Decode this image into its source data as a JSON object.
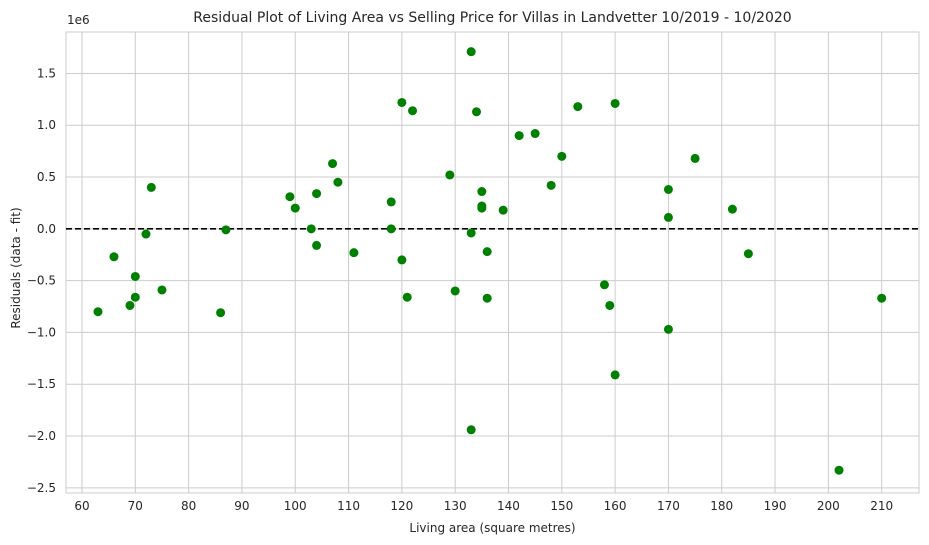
{
  "chart_data": {
    "type": "scatter",
    "title": "Residual Plot of Living Area vs Selling Price for Villas in Landvetter 10/2019 - 10/2020",
    "xlabel": "Living area (square metres)",
    "ylabel": "Residuals (data - fit)",
    "y_offset_label": "1e6",
    "xlim": [
      57,
      217
    ],
    "ylim": [
      -2.55,
      1.9
    ],
    "x_ticks": [
      60,
      70,
      80,
      90,
      100,
      110,
      120,
      130,
      140,
      150,
      160,
      170,
      180,
      190,
      200,
      210
    ],
    "y_ticks": [
      -2.5,
      -2.0,
      -1.5,
      -1.0,
      -0.5,
      0.0,
      0.5,
      1.0,
      1.5
    ],
    "y_tick_labels": [
      "−2.5",
      "−2.0",
      "−1.5",
      "−1.0",
      "−0.5",
      "0.0",
      "0.5",
      "1.0",
      "1.5"
    ],
    "grid": true,
    "point_color": "#008000",
    "reference_line": {
      "y": 0,
      "style": "dashed",
      "color": "#000000"
    },
    "points": [
      {
        "x": 63,
        "y": -0.8
      },
      {
        "x": 66,
        "y": -0.27
      },
      {
        "x": 69,
        "y": -0.74
      },
      {
        "x": 70,
        "y": -0.46
      },
      {
        "x": 70,
        "y": -0.66
      },
      {
        "x": 72,
        "y": -0.05
      },
      {
        "x": 73,
        "y": 0.4
      },
      {
        "x": 75,
        "y": -0.59
      },
      {
        "x": 86,
        "y": -0.81
      },
      {
        "x": 87,
        "y": -0.01
      },
      {
        "x": 99,
        "y": 0.31
      },
      {
        "x": 100,
        "y": 0.2
      },
      {
        "x": 103,
        "y": 0.0
      },
      {
        "x": 104,
        "y": 0.34
      },
      {
        "x": 104,
        "y": -0.16
      },
      {
        "x": 107,
        "y": 0.63
      },
      {
        "x": 108,
        "y": 0.45
      },
      {
        "x": 111,
        "y": -0.23
      },
      {
        "x": 118,
        "y": 0.26
      },
      {
        "x": 118,
        "y": 0.0
      },
      {
        "x": 120,
        "y": 1.22
      },
      {
        "x": 120,
        "y": -0.3
      },
      {
        "x": 121,
        "y": -0.66
      },
      {
        "x": 122,
        "y": 1.14
      },
      {
        "x": 129,
        "y": 0.52
      },
      {
        "x": 130,
        "y": -0.6
      },
      {
        "x": 133,
        "y": 1.71
      },
      {
        "x": 133,
        "y": -0.04
      },
      {
        "x": 133,
        "y": -1.94
      },
      {
        "x": 134,
        "y": 1.13
      },
      {
        "x": 135,
        "y": 0.36
      },
      {
        "x": 135,
        "y": 0.22
      },
      {
        "x": 135,
        "y": 0.2
      },
      {
        "x": 136,
        "y": -0.22
      },
      {
        "x": 136,
        "y": -0.67
      },
      {
        "x": 139,
        "y": 0.18
      },
      {
        "x": 142,
        "y": 0.9
      },
      {
        "x": 145,
        "y": 0.92
      },
      {
        "x": 148,
        "y": 0.42
      },
      {
        "x": 150,
        "y": 0.7
      },
      {
        "x": 153,
        "y": 1.18
      },
      {
        "x": 158,
        "y": -0.54
      },
      {
        "x": 159,
        "y": -0.74
      },
      {
        "x": 160,
        "y": 1.21
      },
      {
        "x": 160,
        "y": -1.41
      },
      {
        "x": 170,
        "y": 0.38
      },
      {
        "x": 170,
        "y": 0.11
      },
      {
        "x": 170,
        "y": -0.97
      },
      {
        "x": 175,
        "y": 0.68
      },
      {
        "x": 182,
        "y": 0.19
      },
      {
        "x": 185,
        "y": -0.24
      },
      {
        "x": 202,
        "y": -2.33
      },
      {
        "x": 210,
        "y": -0.67
      }
    ]
  }
}
